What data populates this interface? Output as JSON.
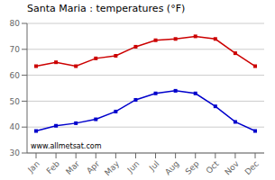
{
  "chart_data": {
    "type": "line",
    "title": "Santa Maria : temperatures (°F)",
    "categories": [
      "Jan",
      "Feb",
      "Mar",
      "Apr",
      "May",
      "Jun",
      "Jul",
      "Aug",
      "Sep",
      "Oct",
      "Nov",
      "Dec"
    ],
    "series": [
      {
        "color": "#cc0000",
        "marker": "square",
        "values": [
          63.5,
          65.0,
          63.5,
          66.5,
          67.5,
          71.0,
          73.5,
          74.0,
          75.0,
          74.0,
          68.5,
          63.5
        ]
      },
      {
        "color": "#0000cc",
        "marker": "square",
        "values": [
          38.5,
          40.5,
          41.5,
          43.0,
          46.0,
          50.5,
          53.0,
          54.0,
          53.0,
          48.0,
          42.0,
          38.5
        ]
      }
    ],
    "ylim": [
      30,
      80
    ],
    "yticks": [
      30,
      40,
      50,
      60,
      70,
      80
    ],
    "grid": true,
    "annotations": [
      "www.allmetsat.com"
    ]
  }
}
